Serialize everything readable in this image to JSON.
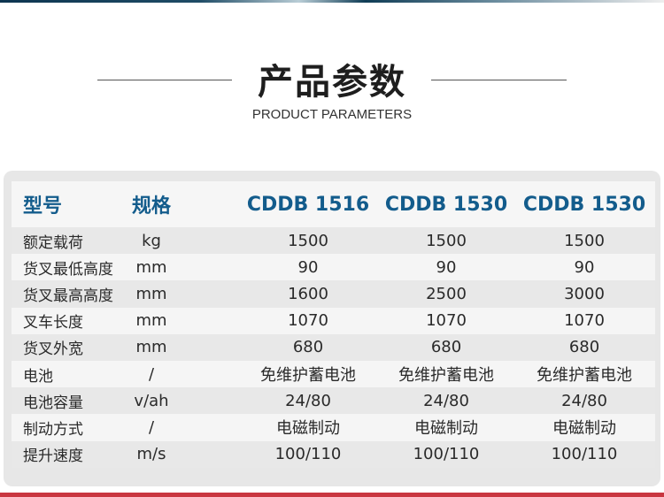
{
  "header": {
    "title": "产品参数",
    "subtitle": "PRODUCT PARAMETERS"
  },
  "table": {
    "columns": [
      "型号",
      "规格",
      "CDDB 1516",
      "CDDB 1530",
      "CDDB 1530"
    ],
    "rows": [
      [
        "额定载荷",
        "kg",
        "1500",
        "1500",
        "1500"
      ],
      [
        "货叉最低高度",
        "mm",
        "90",
        "90",
        "90"
      ],
      [
        "货叉最高高度",
        "mm",
        "1600",
        "2500",
        "3000"
      ],
      [
        "叉车长度",
        "mm",
        "1070",
        "1070",
        "1070"
      ],
      [
        "货叉外宽",
        "mm",
        "680",
        "680",
        "680"
      ],
      [
        "电池",
        "/",
        "免维护蓄电池",
        "免维护蓄电池",
        "免维护蓄电池"
      ],
      [
        "电池容量",
        "v/ah",
        "24/80",
        "24/80",
        "24/80"
      ],
      [
        "制动方式",
        "/",
        "电磁制动",
        "电磁制动",
        "电磁制动"
      ],
      [
        "提升速度",
        "m/s",
        "100/110",
        "100/110",
        "100/110"
      ]
    ]
  },
  "colors": {
    "accent": "#135c8c",
    "bottom_bar": "#c93640"
  }
}
